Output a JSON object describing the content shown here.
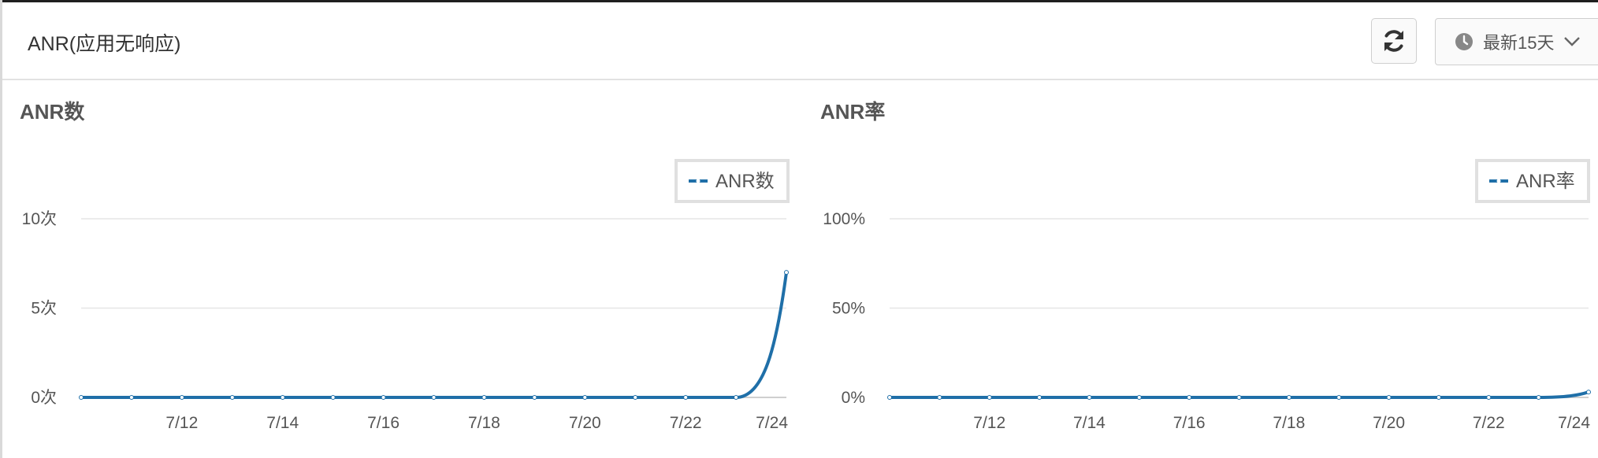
{
  "header": {
    "title": "ANR(应用无响应)",
    "refresh_icon": "refresh-icon",
    "range_label": "最新15天",
    "clock_icon": "clock-icon",
    "chevron_icon": "chevron-down-icon"
  },
  "colors": {
    "series": "#1f6fa8",
    "grid": "#e6e6e6",
    "axis": "#cfcfcf"
  },
  "chart_data": [
    {
      "type": "line",
      "title": "ANR数",
      "x": [
        "7/10",
        "7/11",
        "7/12",
        "7/13",
        "7/14",
        "7/15",
        "7/16",
        "7/17",
        "7/18",
        "7/19",
        "7/20",
        "7/21",
        "7/22",
        "7/23",
        "7/24"
      ],
      "x_tick_labels": [
        "7/12",
        "7/14",
        "7/16",
        "7/18",
        "7/20",
        "7/22",
        "7/24"
      ],
      "y_tick_labels": [
        "0次",
        "5次",
        "10次"
      ],
      "y_ticks": [
        0,
        5,
        10
      ],
      "ylim": [
        0,
        10
      ],
      "series": [
        {
          "name": "ANR数",
          "values": [
            0,
            0,
            0,
            0,
            0,
            0,
            0,
            0,
            0,
            0,
            0,
            0,
            0,
            0,
            7
          ]
        }
      ],
      "legend": {
        "position": "top-right"
      },
      "grid": true
    },
    {
      "type": "line",
      "title": "ANR率",
      "x": [
        "7/10",
        "7/11",
        "7/12",
        "7/13",
        "7/14",
        "7/15",
        "7/16",
        "7/17",
        "7/18",
        "7/19",
        "7/20",
        "7/21",
        "7/22",
        "7/23",
        "7/24"
      ],
      "x_tick_labels": [
        "7/12",
        "7/14",
        "7/16",
        "7/18",
        "7/20",
        "7/22",
        "7/24"
      ],
      "y_tick_labels": [
        "0%",
        "50%",
        "100%"
      ],
      "y_ticks": [
        0,
        50,
        100
      ],
      "ylim": [
        0,
        100
      ],
      "series": [
        {
          "name": "ANR率",
          "values": [
            0,
            0,
            0,
            0,
            0,
            0,
            0,
            0,
            0,
            0,
            0,
            0,
            0,
            0,
            3
          ]
        }
      ],
      "legend": {
        "position": "top-right"
      },
      "grid": true
    }
  ]
}
